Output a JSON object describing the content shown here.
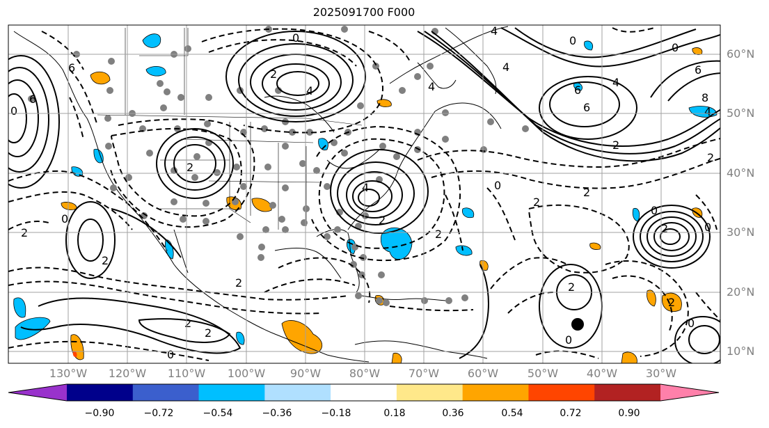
{
  "title": "2025091700 F000",
  "lat_labels": [
    "60°N",
    "50°N",
    "40°N",
    "30°N",
    "20°N",
    "10°N"
  ],
  "lon_labels": [
    "130°W",
    "120°W",
    "110°W",
    "100°W",
    "90°W",
    "80°W",
    "70°W",
    "60°W",
    "50°W",
    "40°W",
    "30°W"
  ],
  "contour_labels": [
    "0",
    "2",
    "4",
    "6",
    "8"
  ],
  "colorbar": {
    "ticks": [
      "−0.90",
      "−0.72",
      "−0.54",
      "−0.36",
      "−0.18",
      "0.18",
      "0.36",
      "0.54",
      "0.72",
      "0.90"
    ],
    "colors": [
      "#9932cc",
      "#00008b",
      "#3b5fcd",
      "#00bfff",
      "#b0e0ff",
      "#ffffff",
      "#ffe88a",
      "#ffa500",
      "#ff4500",
      "#b22222",
      "#ff80aa"
    ]
  },
  "colors": {
    "positive_fill": "#ffa500",
    "negative_fill": "#00bfff",
    "contour": "#000000",
    "grid": "#a0a0a0",
    "coast": "#000000",
    "station": "#808080"
  }
}
